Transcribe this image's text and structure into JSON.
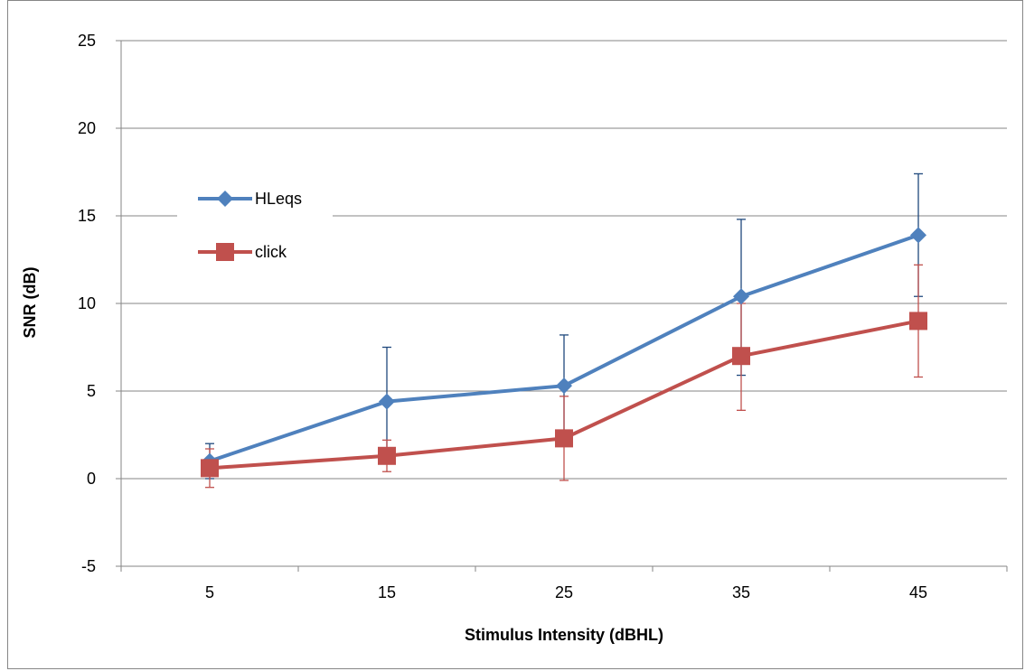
{
  "chart_data": {
    "type": "line",
    "title": "",
    "xlabel": "Stimulus Intensity (dBHL)",
    "ylabel": "SNR (dB)",
    "categories": [
      "5",
      "15",
      "25",
      "35",
      "45"
    ],
    "ylim": [
      -5,
      25
    ],
    "yticks": [
      "-5",
      "0",
      "5",
      "10",
      "15",
      "20",
      "25"
    ],
    "grid": "horizontal",
    "legend_position": "upper-left",
    "series": [
      {
        "name": "HLeqs",
        "color": "#4F81BD",
        "errorbar_color": "#1F497D",
        "marker": "diamond",
        "values": [
          1.0,
          4.4,
          5.3,
          10.4,
          13.9
        ],
        "error_upper": [
          2.0,
          7.5,
          8.2,
          14.8,
          17.4
        ],
        "error_lower": [
          0.0,
          1.3,
          2.3,
          5.9,
          10.4
        ]
      },
      {
        "name": "click",
        "color": "#C0504D",
        "errorbar_color": "#C0504D",
        "marker": "square",
        "values": [
          0.6,
          1.3,
          2.3,
          7.0,
          9.0
        ],
        "error_upper": [
          1.7,
          2.2,
          4.7,
          10.0,
          12.2
        ],
        "error_lower": [
          -0.5,
          0.4,
          -0.1,
          3.9,
          5.8
        ]
      }
    ]
  }
}
